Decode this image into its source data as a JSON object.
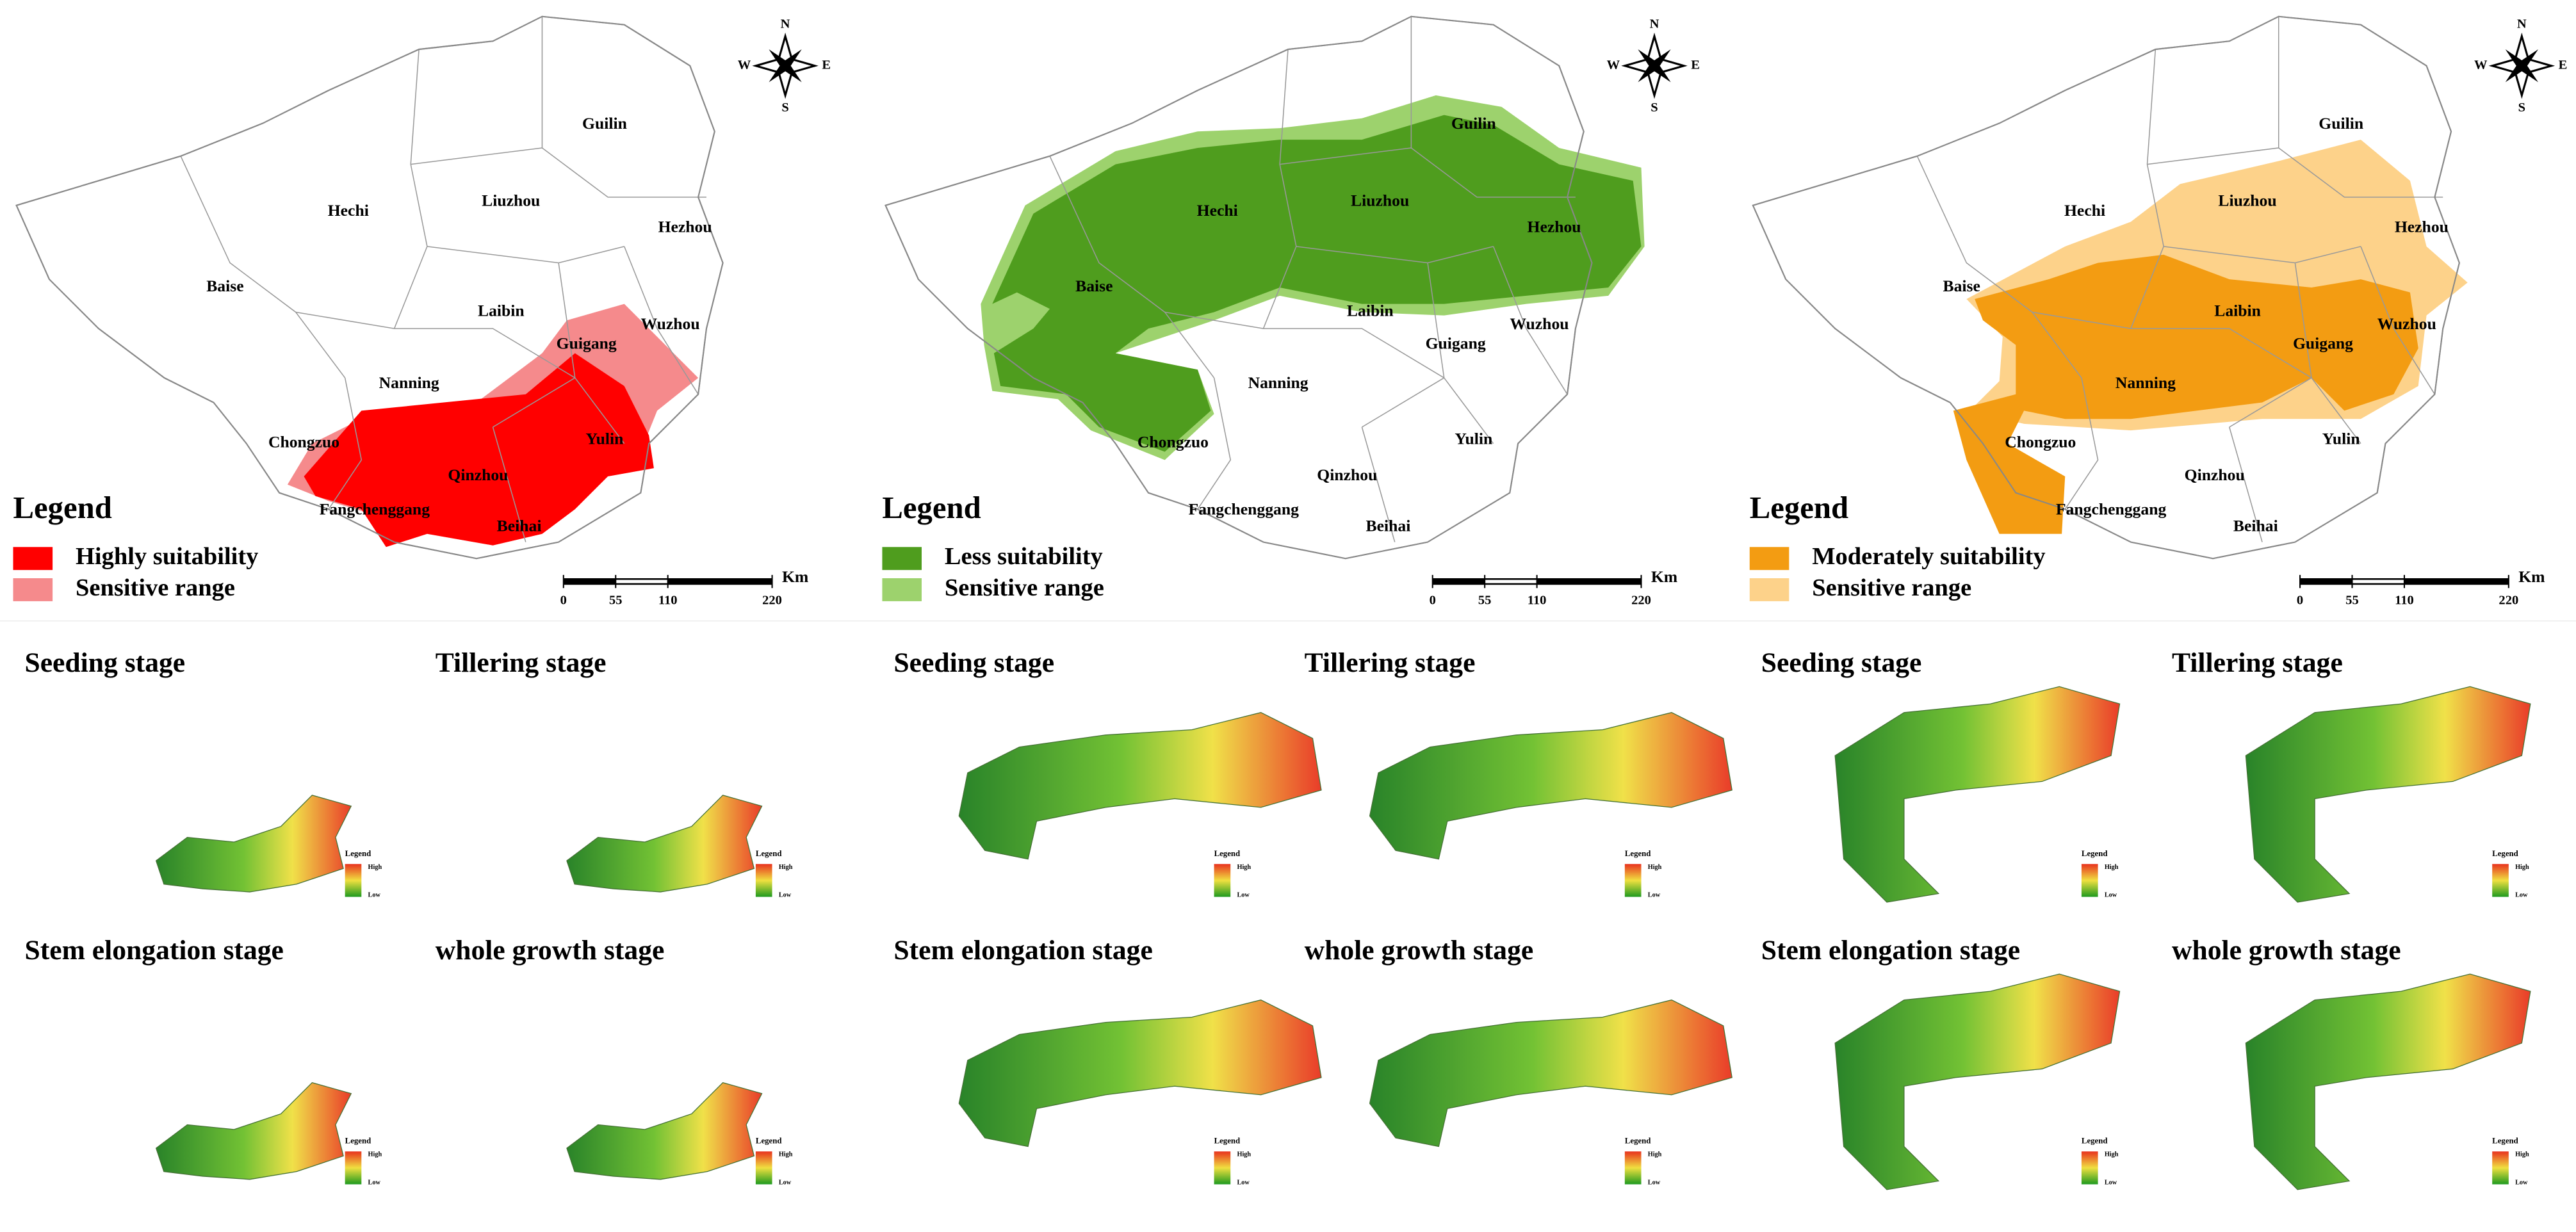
{
  "panels": [
    {
      "compass": {
        "n": "N",
        "s": "S",
        "e": "E",
        "w": "W"
      },
      "cities": [
        {
          "name": "Guilin"
        },
        {
          "name": "Hechi"
        },
        {
          "name": "Liuzhou"
        },
        {
          "name": "Hezhou"
        },
        {
          "name": "Baise"
        },
        {
          "name": "Laibin"
        },
        {
          "name": "Wuzhou"
        },
        {
          "name": "Guigang"
        },
        {
          "name": "Nanning"
        },
        {
          "name": "Chongzuo"
        },
        {
          "name": "Yulin"
        },
        {
          "name": "Qinzhou"
        },
        {
          "name": "Fangchenggang"
        },
        {
          "name": "Beihai"
        }
      ],
      "legend": {
        "title": "Legend",
        "items": [
          {
            "label": "Highly suitability",
            "color": "#ff0000"
          },
          {
            "label": "Sensitive range",
            "color": "#f58a8c"
          }
        ]
      },
      "scale": {
        "ticks": [
          0,
          55,
          110,
          220
        ],
        "unit": "Km"
      },
      "stages": [
        {
          "title": "Seeding stage",
          "legend": {
            "title": "Legend",
            "high": "High",
            "low": "Low"
          }
        },
        {
          "title": "Tillering stage",
          "legend": {
            "title": "Legend",
            "high": "High",
            "low": "Low"
          }
        },
        {
          "title": "Stem elongation stage",
          "legend": {
            "title": "Legend",
            "high": "High",
            "low": "Low"
          }
        },
        {
          "title": "whole growth stage",
          "legend": {
            "title": "Legend",
            "high": "High",
            "low": "Low"
          }
        }
      ]
    },
    {
      "compass": {
        "n": "N",
        "s": "S",
        "e": "E",
        "w": "W"
      },
      "cities": [
        {
          "name": "Guilin"
        },
        {
          "name": "Hechi"
        },
        {
          "name": "Liuzhou"
        },
        {
          "name": "Hezhou"
        },
        {
          "name": "Baise"
        },
        {
          "name": "Laibin"
        },
        {
          "name": "Wuzhou"
        },
        {
          "name": "Guigang"
        },
        {
          "name": "Nanning"
        },
        {
          "name": "Chongzuo"
        },
        {
          "name": "Yulin"
        },
        {
          "name": "Qinzhou"
        },
        {
          "name": "Fangchenggang"
        },
        {
          "name": "Beihai"
        }
      ],
      "legend": {
        "title": "Legend",
        "items": [
          {
            "label": "Less suitability",
            "color": "#4f9d1e"
          },
          {
            "label": "Sensitive range",
            "color": "#9dd26d"
          }
        ]
      },
      "scale": {
        "ticks": [
          0,
          55,
          110,
          220
        ],
        "unit": "Km"
      },
      "stages": [
        {
          "title": "Seeding stage",
          "legend": {
            "title": "Legend",
            "high": "High",
            "low": "Low"
          }
        },
        {
          "title": "Tillering stage",
          "legend": {
            "title": "Legend",
            "high": "High",
            "low": "Low"
          }
        },
        {
          "title": "Stem elongation stage",
          "legend": {
            "title": "Legend",
            "high": "High",
            "low": "Low"
          }
        },
        {
          "title": "whole growth stage",
          "legend": {
            "title": "Legend",
            "high": "High",
            "low": "Low"
          }
        }
      ]
    },
    {
      "compass": {
        "n": "N",
        "s": "S",
        "e": "E",
        "w": "W"
      },
      "cities": [
        {
          "name": "Guilin"
        },
        {
          "name": "Hechi"
        },
        {
          "name": "Liuzhou"
        },
        {
          "name": "Hezhou"
        },
        {
          "name": "Baise"
        },
        {
          "name": "Laibin"
        },
        {
          "name": "Wuzhou"
        },
        {
          "name": "Guigang"
        },
        {
          "name": "Nanning"
        },
        {
          "name": "Chongzuo"
        },
        {
          "name": "Yulin"
        },
        {
          "name": "Qinzhou"
        },
        {
          "name": "Fangchenggang"
        },
        {
          "name": "Beihai"
        }
      ],
      "legend": {
        "title": "Legend",
        "items": [
          {
            "label": "Moderately suitability",
            "color": "#f39c12"
          },
          {
            "label": "Sensitive range",
            "color": "#fdd28a"
          }
        ]
      },
      "scale": {
        "ticks": [
          0,
          55,
          110,
          220
        ],
        "unit": "Km"
      },
      "stages": [
        {
          "title": "Seeding stage",
          "legend": {
            "title": "Legend",
            "high": "High",
            "low": "Low"
          }
        },
        {
          "title": "Tillering stage",
          "legend": {
            "title": "Legend",
            "high": "High",
            "low": "Low"
          }
        },
        {
          "title": "Stem elongation stage",
          "legend": {
            "title": "Legend",
            "high": "High",
            "low": "Low"
          }
        },
        {
          "title": "whole growth stage",
          "legend": {
            "title": "Legend",
            "high": "High",
            "low": "Low"
          }
        }
      ]
    }
  ]
}
